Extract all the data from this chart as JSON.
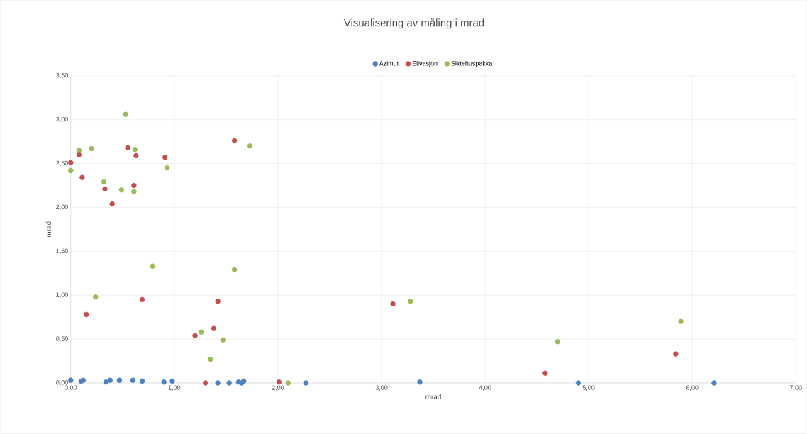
{
  "chart_data": {
    "type": "scatter",
    "title": "Visualisering av måling i mrad",
    "xlabel": "mrad",
    "ylabel": "mrad",
    "xlim": [
      0,
      7
    ],
    "ylim": [
      0,
      3.5
    ],
    "xticks": [
      {
        "value": 0,
        "label": "0,00"
      },
      {
        "value": 1,
        "label": "1,00"
      },
      {
        "value": 2,
        "label": "2,00"
      },
      {
        "value": 3,
        "label": "3,00"
      },
      {
        "value": 4,
        "label": "4,00"
      },
      {
        "value": 5,
        "label": "5,00"
      },
      {
        "value": 6,
        "label": "6,00"
      },
      {
        "value": 7,
        "label": "7,00"
      }
    ],
    "yticks": [
      {
        "value": 0,
        "label": "0,00"
      },
      {
        "value": 0.5,
        "label": "0,50"
      },
      {
        "value": 1,
        "label": "1,00"
      },
      {
        "value": 1.5,
        "label": "1,50"
      },
      {
        "value": 2,
        "label": "2,00"
      },
      {
        "value": 2.5,
        "label": "2,50"
      },
      {
        "value": 3,
        "label": "3,00"
      },
      {
        "value": 3.5,
        "label": "3,50"
      }
    ],
    "grid": true,
    "legend": "top",
    "marker": "circle",
    "series": [
      {
        "name": "Azimut",
        "color": "#4f81bd",
        "x": [
          0,
          0.1,
          0.12,
          0.34,
          0.38,
          0.47,
          0.6,
          0.69,
          0.9,
          0.98,
          1.42,
          1.53,
          1.62,
          1.65,
          1.67,
          2.27,
          3.37,
          4.9,
          6.21
        ],
        "values": [
          0.03,
          0.02,
          0.03,
          0.01,
          0.03,
          0.03,
          0.03,
          0.02,
          0.01,
          0.02,
          0.0,
          0.0,
          0.01,
          0.0,
          0.02,
          0.0,
          0.01,
          0.0,
          0.0
        ]
      },
      {
        "name": "Elivasjon",
        "color": "#c0504d",
        "x": [
          0,
          0.08,
          0.11,
          0.15,
          0.33,
          0.4,
          0.55,
          0.61,
          0.63,
          0.69,
          0.91,
          1.2,
          1.3,
          1.38,
          1.42,
          1.58,
          2.01,
          3.11,
          4.58,
          5.84
        ],
        "values": [
          2.51,
          2.6,
          2.34,
          0.78,
          2.21,
          2.04,
          2.68,
          2.25,
          2.59,
          0.95,
          2.57,
          0.54,
          0.0,
          0.62,
          0.93,
          2.76,
          0.01,
          0.9,
          0.11,
          0.33
        ]
      },
      {
        "name": "Siktehuspakka",
        "color": "#9bbb59",
        "x": [
          0,
          0.08,
          0.2,
          0.32,
          0.24,
          0.49,
          0.53,
          0.62,
          0.61,
          0.79,
          0.93,
          1.26,
          1.35,
          1.47,
          1.58,
          1.73,
          2.1,
          3.28,
          4.7,
          5.89
        ],
        "values": [
          2.42,
          2.65,
          2.67,
          2.29,
          0.98,
          2.2,
          3.06,
          2.66,
          2.18,
          1.33,
          2.45,
          0.58,
          0.27,
          0.49,
          1.29,
          2.7,
          0.0,
          0.93,
          0.47,
          0.7
        ]
      }
    ]
  }
}
